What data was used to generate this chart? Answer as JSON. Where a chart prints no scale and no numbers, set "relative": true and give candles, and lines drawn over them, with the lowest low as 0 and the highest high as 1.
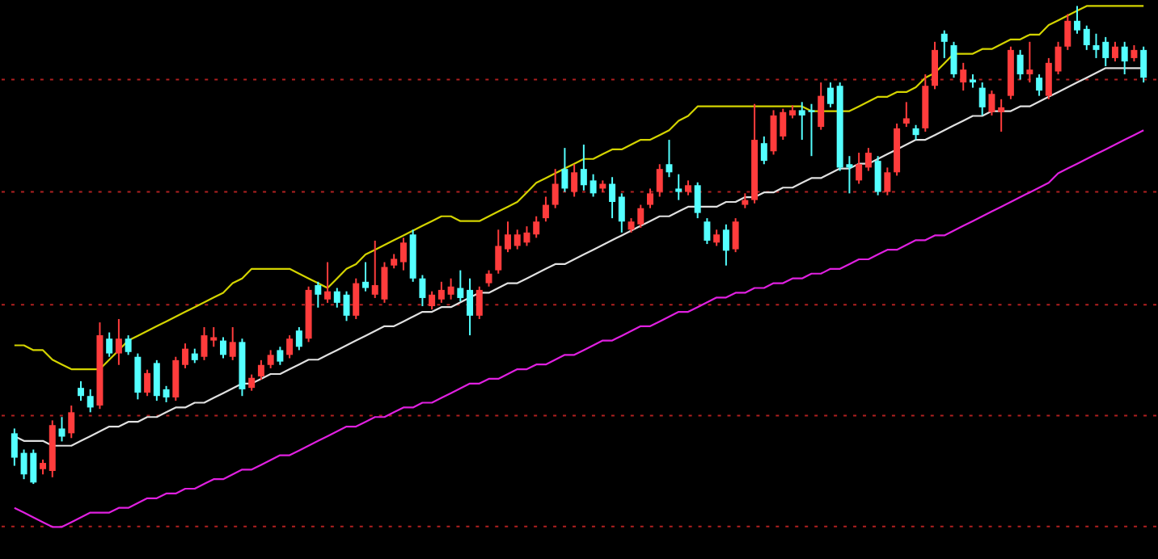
{
  "chart_data": {
    "type": "candlestick",
    "relative": true,
    "tick_labels": false,
    "ref_lines": [
      {
        "axis": "y",
        "value": -0.089,
        "color": "#b02020",
        "line_style": "dotted"
      },
      {
        "axis": "y",
        "value": 0.143,
        "color": "#b02020",
        "line_style": "dotted"
      },
      {
        "axis": "y",
        "value": 0.375,
        "color": "#b02020",
        "line_style": "dotted"
      },
      {
        "axis": "y",
        "value": 0.611,
        "color": "#b02020",
        "line_style": "dotted"
      },
      {
        "axis": "y",
        "value": 0.846,
        "color": "#b02020",
        "line_style": "dotted"
      }
    ],
    "categories": [
      null,
      null,
      null,
      null,
      null,
      null,
      null,
      null,
      null,
      null,
      null,
      null,
      null,
      null,
      null,
      null,
      null,
      null,
      null,
      null,
      null,
      null,
      null,
      null,
      null,
      null,
      null,
      null,
      null,
      null,
      null,
      null,
      null,
      null,
      null,
      null,
      null,
      null,
      null,
      null,
      null,
      null,
      null,
      null,
      null,
      null,
      null,
      null,
      null,
      null,
      null,
      null,
      null,
      null,
      null,
      null,
      null,
      null,
      null,
      null,
      null,
      null,
      null,
      null,
      null,
      null,
      null,
      null,
      null,
      null,
      null,
      null,
      null,
      null,
      null,
      null,
      null,
      null,
      null,
      null,
      null,
      null,
      null,
      null,
      null,
      null,
      null,
      null,
      null,
      null,
      null,
      null,
      null,
      null,
      null,
      null,
      null,
      null,
      null,
      null,
      null,
      null,
      null,
      null,
      null,
      null,
      null,
      null,
      null,
      null,
      null,
      null,
      null,
      null,
      null,
      null,
      null,
      null,
      null,
      null
    ],
    "ohlc": [
      [
        0.106,
        0.116,
        0.038,
        0.055
      ],
      [
        0.065,
        0.072,
        0.01,
        0.02
      ],
      [
        0.065,
        0.072,
        0.0,
        0.003
      ],
      [
        0.031,
        0.051,
        0.02,
        0.044
      ],
      [
        0.027,
        0.133,
        0.014,
        0.123
      ],
      [
        0.116,
        0.14,
        0.089,
        0.099
      ],
      [
        0.106,
        0.164,
        0.096,
        0.15
      ],
      [
        0.201,
        0.215,
        0.174,
        0.184
      ],
      [
        0.184,
        0.198,
        0.15,
        0.16
      ],
      [
        0.164,
        0.338,
        0.157,
        0.311
      ],
      [
        0.304,
        0.317,
        0.266,
        0.273
      ],
      [
        0.273,
        0.345,
        0.249,
        0.304
      ],
      [
        0.304,
        0.311,
        0.27,
        0.276
      ],
      [
        0.266,
        0.273,
        0.177,
        0.191
      ],
      [
        0.191,
        0.239,
        0.184,
        0.232
      ],
      [
        0.253,
        0.259,
        0.174,
        0.184
      ],
      [
        0.198,
        0.205,
        0.171,
        0.181
      ],
      [
        0.181,
        0.266,
        0.174,
        0.259
      ],
      [
        0.249,
        0.294,
        0.242,
        0.283
      ],
      [
        0.273,
        0.283,
        0.253,
        0.259
      ],
      [
        0.266,
        0.328,
        0.259,
        0.311
      ],
      [
        0.3,
        0.328,
        0.287,
        0.307
      ],
      [
        0.3,
        0.307,
        0.263,
        0.27
      ],
      [
        0.266,
        0.328,
        0.259,
        0.297
      ],
      [
        0.297,
        0.304,
        0.184,
        0.198
      ],
      [
        0.201,
        0.229,
        0.195,
        0.222
      ],
      [
        0.225,
        0.259,
        0.218,
        0.249
      ],
      [
        0.249,
        0.28,
        0.242,
        0.27
      ],
      [
        0.28,
        0.287,
        0.249,
        0.256
      ],
      [
        0.27,
        0.311,
        0.263,
        0.304
      ],
      [
        0.321,
        0.328,
        0.28,
        0.287
      ],
      [
        0.304,
        0.413,
        0.297,
        0.406
      ],
      [
        0.416,
        0.423,
        0.369,
        0.396
      ],
      [
        0.386,
        0.464,
        0.379,
        0.403
      ],
      [
        0.403,
        0.41,
        0.369,
        0.379
      ],
      [
        0.396,
        0.403,
        0.341,
        0.352
      ],
      [
        0.352,
        0.43,
        0.345,
        0.42
      ],
      [
        0.423,
        0.464,
        0.403,
        0.41
      ],
      [
        0.396,
        0.509,
        0.389,
        0.416
      ],
      [
        0.386,
        0.464,
        0.379,
        0.454
      ],
      [
        0.457,
        0.481,
        0.451,
        0.471
      ],
      [
        0.464,
        0.515,
        0.447,
        0.505
      ],
      [
        0.522,
        0.532,
        0.423,
        0.43
      ],
      [
        0.43,
        0.437,
        0.372,
        0.389
      ],
      [
        0.372,
        0.403,
        0.365,
        0.396
      ],
      [
        0.386,
        0.423,
        0.379,
        0.406
      ],
      [
        0.396,
        0.43,
        0.386,
        0.413
      ],
      [
        0.41,
        0.447,
        0.382,
        0.389
      ],
      [
        0.406,
        0.43,
        0.311,
        0.352
      ],
      [
        0.352,
        0.413,
        0.345,
        0.406
      ],
      [
        0.42,
        0.447,
        0.413,
        0.44
      ],
      [
        0.447,
        0.532,
        0.44,
        0.498
      ],
      [
        0.491,
        0.549,
        0.485,
        0.522
      ],
      [
        0.498,
        0.532,
        0.491,
        0.522
      ],
      [
        0.505,
        0.539,
        0.498,
        0.526
      ],
      [
        0.522,
        0.56,
        0.515,
        0.549
      ],
      [
        0.556,
        0.601,
        0.549,
        0.584
      ],
      [
        0.584,
        0.659,
        0.577,
        0.628
      ],
      [
        0.659,
        0.703,
        0.611,
        0.618
      ],
      [
        0.611,
        0.669,
        0.601,
        0.652
      ],
      [
        0.659,
        0.71,
        0.614,
        0.625
      ],
      [
        0.635,
        0.648,
        0.601,
        0.608
      ],
      [
        0.618,
        0.635,
        0.611,
        0.628
      ],
      [
        0.628,
        0.642,
        0.556,
        0.59
      ],
      [
        0.601,
        0.608,
        0.526,
        0.549
      ],
      [
        0.532,
        0.556,
        0.526,
        0.549
      ],
      [
        0.543,
        0.584,
        0.536,
        0.577
      ],
      [
        0.584,
        0.618,
        0.577,
        0.608
      ],
      [
        0.611,
        0.669,
        0.601,
        0.659
      ],
      [
        0.669,
        0.72,
        0.642,
        0.652
      ],
      [
        0.618,
        0.648,
        0.594,
        0.611
      ],
      [
        0.611,
        0.635,
        0.604,
        0.625
      ],
      [
        0.625,
        0.631,
        0.556,
        0.567
      ],
      [
        0.549,
        0.556,
        0.502,
        0.509
      ],
      [
        0.505,
        0.532,
        0.498,
        0.522
      ],
      [
        0.532,
        0.543,
        0.457,
        0.488
      ],
      [
        0.491,
        0.556,
        0.485,
        0.549
      ],
      [
        0.584,
        0.608,
        0.577,
        0.594
      ],
      [
        0.594,
        0.795,
        0.587,
        0.72
      ],
      [
        0.713,
        0.727,
        0.669,
        0.676
      ],
      [
        0.696,
        0.782,
        0.689,
        0.771
      ],
      [
        0.727,
        0.785,
        0.72,
        0.778
      ],
      [
        0.771,
        0.792,
        0.765,
        0.782
      ],
      [
        0.782,
        0.799,
        0.72,
        0.771
      ],
      [
        0.782,
        0.795,
        0.686,
        0.778
      ],
      [
        0.747,
        0.84,
        0.741,
        0.812
      ],
      [
        0.829,
        0.84,
        0.788,
        0.795
      ],
      [
        0.833,
        0.84,
        0.655,
        0.662
      ],
      [
        0.669,
        0.686,
        0.608,
        0.662
      ],
      [
        0.635,
        0.693,
        0.628,
        0.669
      ],
      [
        0.662,
        0.703,
        0.655,
        0.693
      ],
      [
        0.676,
        0.686,
        0.604,
        0.611
      ],
      [
        0.611,
        0.662,
        0.604,
        0.652
      ],
      [
        0.652,
        0.754,
        0.645,
        0.744
      ],
      [
        0.754,
        0.799,
        0.747,
        0.765
      ],
      [
        0.744,
        0.751,
        0.72,
        0.73
      ],
      [
        0.744,
        0.857,
        0.737,
        0.833
      ],
      [
        0.833,
        0.925,
        0.826,
        0.908
      ],
      [
        0.942,
        0.949,
        0.891,
        0.925
      ],
      [
        0.918,
        0.925,
        0.85,
        0.857
      ],
      [
        0.84,
        0.881,
        0.823,
        0.867
      ],
      [
        0.846,
        0.857,
        0.829,
        0.84
      ],
      [
        0.829,
        0.84,
        0.771,
        0.788
      ],
      [
        0.778,
        0.823,
        0.771,
        0.816
      ],
      [
        0.778,
        0.805,
        0.737,
        0.788
      ],
      [
        0.812,
        0.915,
        0.805,
        0.908
      ],
      [
        0.898,
        0.908,
        0.846,
        0.857
      ],
      [
        0.857,
        0.925,
        0.84,
        0.867
      ],
      [
        0.85,
        0.857,
        0.812,
        0.823
      ],
      [
        0.812,
        0.891,
        0.805,
        0.881
      ],
      [
        0.863,
        0.925,
        0.857,
        0.915
      ],
      [
        0.915,
        0.983,
        0.908,
        0.969
      ],
      [
        0.969,
        1.0,
        0.942,
        0.949
      ],
      [
        0.952,
        0.959,
        0.908,
        0.918
      ],
      [
        0.918,
        0.942,
        0.891,
        0.908
      ],
      [
        0.925,
        0.935,
        0.874,
        0.891
      ],
      [
        0.891,
        0.925,
        0.884,
        0.915
      ],
      [
        0.915,
        0.925,
        0.857,
        0.884
      ],
      [
        0.891,
        0.918,
        0.884,
        0.908
      ],
      [
        0.908,
        0.915,
        0.84,
        0.85
      ]
    ],
    "series": [
      {
        "type": "line",
        "color": "#d4d400",
        "values": [
          0.29,
          0.29,
          0.28,
          0.28,
          0.26,
          0.25,
          0.24,
          0.24,
          0.24,
          0.24,
          0.26,
          0.28,
          0.3,
          0.31,
          0.32,
          0.33,
          0.34,
          0.35,
          0.36,
          0.37,
          0.38,
          0.39,
          0.4,
          0.42,
          0.43,
          0.45,
          0.45,
          0.45,
          0.45,
          0.45,
          0.44,
          0.43,
          0.42,
          0.41,
          0.43,
          0.45,
          0.46,
          0.48,
          0.49,
          0.5,
          0.51,
          0.52,
          0.53,
          0.54,
          0.55,
          0.56,
          0.56,
          0.55,
          0.55,
          0.55,
          0.56,
          0.57,
          0.58,
          0.59,
          0.61,
          0.63,
          0.64,
          0.65,
          0.66,
          0.67,
          0.68,
          0.68,
          0.69,
          0.7,
          0.7,
          0.71,
          0.72,
          0.72,
          0.73,
          0.74,
          0.76,
          0.77,
          0.79,
          0.79,
          0.79,
          0.79,
          0.79,
          0.79,
          0.79,
          0.79,
          0.79,
          0.79,
          0.79,
          0.79,
          0.78,
          0.78,
          0.78,
          0.78,
          0.78,
          0.79,
          0.8,
          0.81,
          0.81,
          0.82,
          0.82,
          0.83,
          0.85,
          0.86,
          0.88,
          0.9,
          0.9,
          0.9,
          0.91,
          0.91,
          0.92,
          0.93,
          0.93,
          0.94,
          0.94,
          0.96,
          0.97,
          0.98,
          0.99,
          1.0,
          1.0,
          1.0,
          1.0,
          1.0,
          1.0,
          1.0
        ]
      },
      {
        "type": "line",
        "color": "#e0e0e0",
        "values": [
          0.1,
          0.09,
          0.09,
          0.09,
          0.08,
          0.08,
          0.08,
          0.09,
          0.1,
          0.11,
          0.12,
          0.12,
          0.13,
          0.13,
          0.14,
          0.14,
          0.15,
          0.16,
          0.16,
          0.17,
          0.17,
          0.18,
          0.19,
          0.2,
          0.21,
          0.21,
          0.22,
          0.23,
          0.23,
          0.24,
          0.25,
          0.26,
          0.26,
          0.27,
          0.28,
          0.29,
          0.3,
          0.31,
          0.32,
          0.33,
          0.33,
          0.34,
          0.35,
          0.36,
          0.36,
          0.37,
          0.37,
          0.38,
          0.39,
          0.4,
          0.4,
          0.41,
          0.42,
          0.42,
          0.43,
          0.44,
          0.45,
          0.46,
          0.46,
          0.47,
          0.48,
          0.49,
          0.5,
          0.51,
          0.52,
          0.53,
          0.54,
          0.55,
          0.56,
          0.56,
          0.57,
          0.58,
          0.58,
          0.58,
          0.58,
          0.59,
          0.59,
          0.6,
          0.6,
          0.61,
          0.61,
          0.62,
          0.62,
          0.63,
          0.64,
          0.64,
          0.65,
          0.66,
          0.66,
          0.67,
          0.67,
          0.68,
          0.69,
          0.7,
          0.71,
          0.72,
          0.72,
          0.73,
          0.74,
          0.75,
          0.76,
          0.77,
          0.77,
          0.78,
          0.78,
          0.78,
          0.79,
          0.79,
          0.8,
          0.81,
          0.82,
          0.83,
          0.84,
          0.85,
          0.86,
          0.87,
          0.87,
          0.87,
          0.87,
          0.87
        ]
      },
      {
        "type": "line",
        "color": "#e020e0",
        "values": [
          -0.05,
          -0.06,
          -0.07,
          -0.08,
          -0.09,
          -0.09,
          -0.08,
          -0.07,
          -0.06,
          -0.06,
          -0.06,
          -0.05,
          -0.05,
          -0.04,
          -0.03,
          -0.03,
          -0.02,
          -0.02,
          -0.01,
          -0.01,
          0.0,
          0.01,
          0.01,
          0.02,
          0.03,
          0.03,
          0.04,
          0.05,
          0.06,
          0.06,
          0.07,
          0.08,
          0.09,
          0.1,
          0.11,
          0.12,
          0.12,
          0.13,
          0.14,
          0.14,
          0.15,
          0.16,
          0.16,
          0.17,
          0.17,
          0.18,
          0.19,
          0.2,
          0.21,
          0.21,
          0.22,
          0.22,
          0.23,
          0.24,
          0.24,
          0.25,
          0.25,
          0.26,
          0.27,
          0.27,
          0.28,
          0.29,
          0.3,
          0.3,
          0.31,
          0.32,
          0.33,
          0.33,
          0.34,
          0.35,
          0.36,
          0.36,
          0.37,
          0.38,
          0.39,
          0.39,
          0.4,
          0.4,
          0.41,
          0.41,
          0.42,
          0.42,
          0.43,
          0.43,
          0.44,
          0.44,
          0.45,
          0.45,
          0.46,
          0.47,
          0.47,
          0.48,
          0.49,
          0.49,
          0.5,
          0.51,
          0.51,
          0.52,
          0.52,
          0.53,
          0.54,
          0.55,
          0.56,
          0.57,
          0.58,
          0.59,
          0.6,
          0.61,
          0.62,
          0.63,
          0.65,
          0.66,
          0.67,
          0.68,
          0.69,
          0.7,
          0.71,
          0.72,
          0.73,
          0.74
        ]
      }
    ]
  }
}
